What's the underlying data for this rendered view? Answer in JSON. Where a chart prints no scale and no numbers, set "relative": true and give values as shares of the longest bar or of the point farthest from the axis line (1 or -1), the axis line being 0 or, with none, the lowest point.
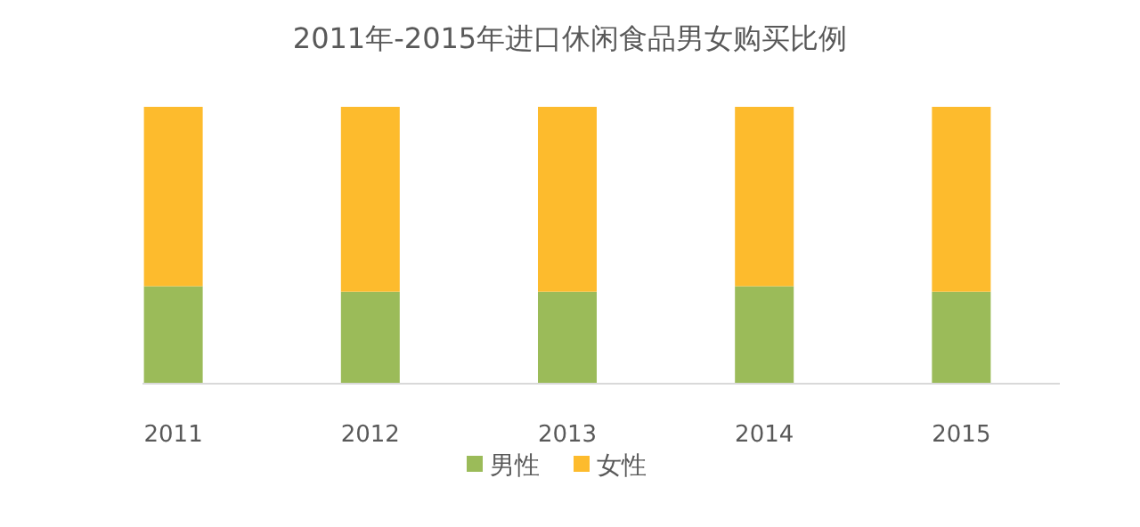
{
  "chart_data": {
    "type": "bar",
    "title": "2011年-2015年进口休闲食品男女购买比例",
    "categories": [
      "2011",
      "2012",
      "2013",
      "2014",
      "2015"
    ],
    "stacked": true,
    "relative": true,
    "legend": "bottom",
    "series": [
      {
        "name": "男性",
        "color": "#9bbb59",
        "values": [
          0.35,
          0.33,
          0.33,
          0.35,
          0.33
        ]
      },
      {
        "name": "女性",
        "color": "#fdbb2d",
        "values": [
          0.65,
          0.67,
          0.67,
          0.65,
          0.67
        ]
      }
    ]
  }
}
